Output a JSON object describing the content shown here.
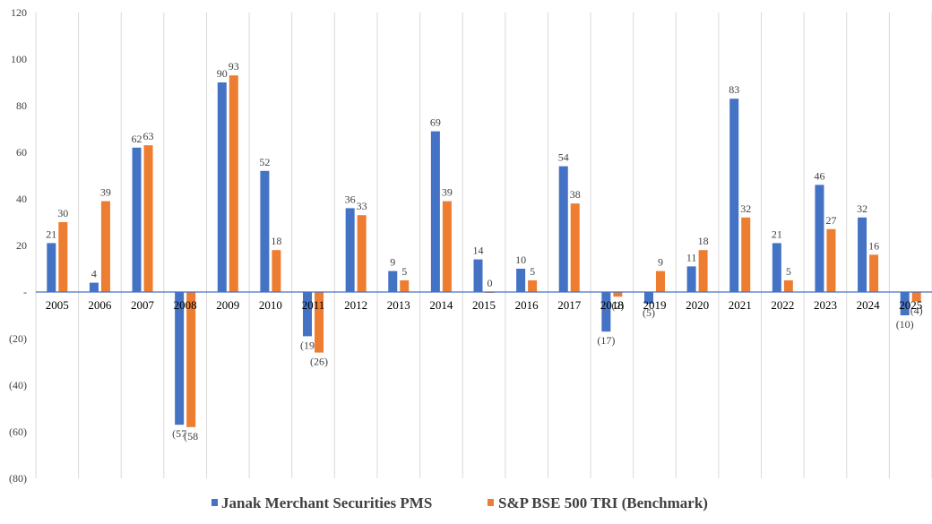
{
  "chart_data": {
    "type": "bar",
    "title": "",
    "xlabel": "",
    "ylabel": "",
    "ylim": [
      -80,
      120
    ],
    "yticks": [
      120,
      100,
      80,
      60,
      40,
      20,
      0,
      -20,
      -40,
      -60,
      -80
    ],
    "ytick_labels": [
      "120",
      "100",
      "80",
      "60",
      "40",
      "20",
      "-",
      "(20)",
      "(40)",
      "(60)",
      "(80)"
    ],
    "grid": "vertical-category-separators",
    "legend_position": "bottom-center",
    "categories": [
      "2005",
      "2006",
      "2007",
      "2008",
      "2009",
      "2010",
      "2011",
      "2012",
      "2013",
      "2014",
      "2015",
      "2016",
      "2017",
      "2018",
      "2019",
      "2020",
      "2021",
      "2022",
      "2023",
      "2024",
      "2025"
    ],
    "series": [
      {
        "name": "Janak Merchant Securities PMS",
        "color": "#4472C4",
        "values": [
          21,
          4,
          62,
          -57,
          90,
          52,
          -19,
          36,
          9,
          69,
          14,
          10,
          54,
          -17,
          -5,
          11,
          83,
          21,
          46,
          32,
          -10
        ],
        "labels": [
          "21",
          "4",
          "62",
          "(57",
          "90",
          "52",
          "(19",
          "36",
          "9",
          "69",
          "14",
          "10",
          "54",
          "(17)",
          "(5)",
          "11",
          "83",
          "21",
          "46",
          "32",
          "(10)"
        ]
      },
      {
        "name": "S&P BSE 500 TRI (Benchmark)",
        "color": "#ED7D31",
        "values": [
          30,
          39,
          63,
          -58,
          93,
          18,
          -26,
          33,
          5,
          39,
          0,
          5,
          38,
          -2,
          9,
          18,
          32,
          5,
          27,
          16,
          -4
        ],
        "labels": [
          "30",
          "39",
          "63",
          "(58",
          "93",
          "18",
          "(26)",
          "33",
          "5",
          "39",
          "0",
          "5",
          "38",
          "(2)",
          "9",
          "18",
          "32",
          "5",
          "27",
          "16",
          "(4)"
        ]
      }
    ]
  }
}
